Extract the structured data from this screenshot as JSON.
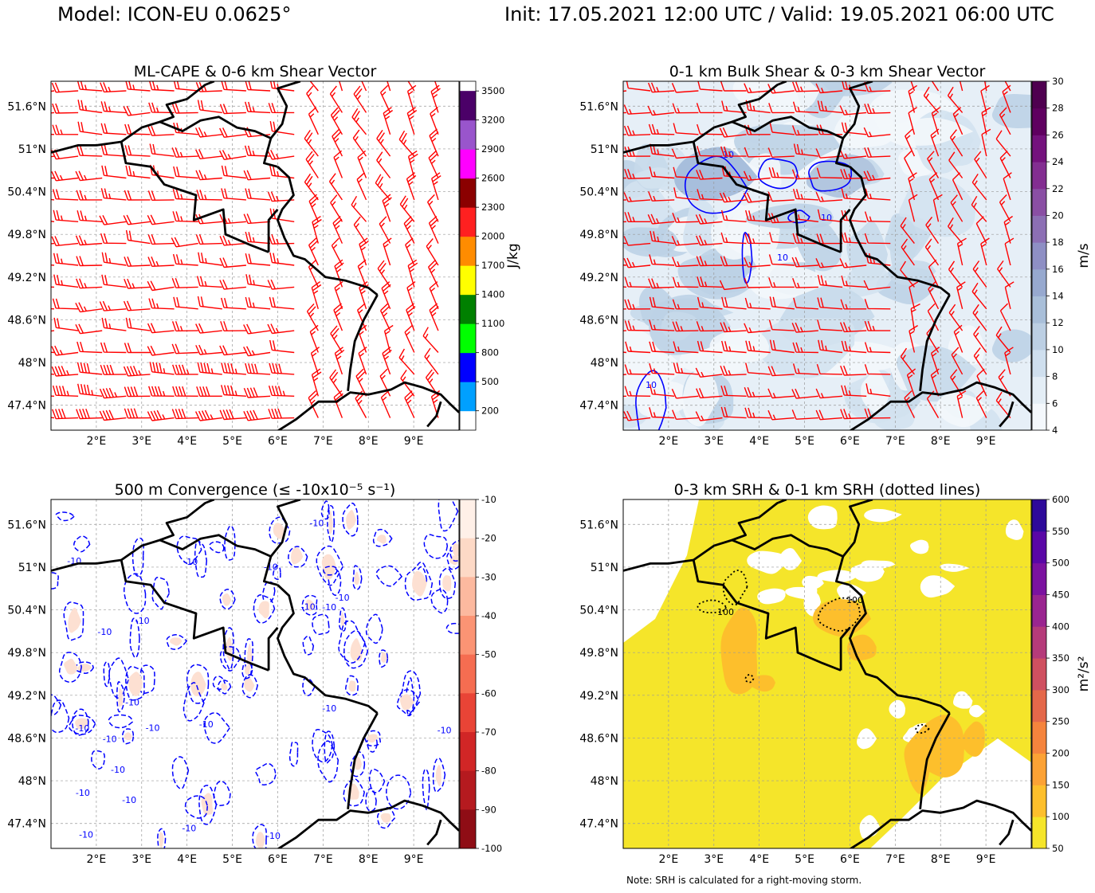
{
  "header": {
    "model": "Model: ICON-EU 0.0625°",
    "times": "Init: 17.05.2021 12:00 UTC / Valid: 19.05.2021 06:00 UTC"
  },
  "note": "Note: SRH is calculated for a right-moving storm.",
  "chart_data": [
    {
      "id": "cape",
      "type": "map",
      "title": "ML-CAPE & 0-6 km Shear Vector",
      "xlabels": [
        "2°E",
        "3°E",
        "4°E",
        "5°E",
        "6°E",
        "7°E",
        "8°E",
        "9°E"
      ],
      "ylabels": [
        "51.6°N",
        "51°N",
        "50.4°N",
        "49.8°N",
        "49.2°N",
        "48.6°N",
        "48°N",
        "47.4°N"
      ],
      "colorbar": {
        "label": "J/kg",
        "ticks": [
          "200",
          "500",
          "800",
          "1100",
          "1400",
          "1700",
          "2000",
          "2300",
          "2600",
          "2900",
          "3200",
          "3500"
        ],
        "colors": [
          "#ffffff",
          "#00a0ff",
          "#0000ff",
          "#00ff00",
          "#008000",
          "#ffff00",
          "#ff8c00",
          "#ff2020",
          "#8b0000",
          "#ff00ff",
          "#9955cc",
          "#4b0068"
        ],
        "values": [
          200,
          500,
          800,
          1100,
          1400,
          1700,
          2000,
          2300,
          2600,
          2900,
          3200,
          3500
        ]
      },
      "overlay": "wind barbs (red)",
      "field": "none"
    },
    {
      "id": "shear",
      "type": "map",
      "title": "0-1 km Bulk Shear & 0-3 km Shear Vector",
      "xlabels": [
        "2°E",
        "3°E",
        "4°E",
        "5°E",
        "6°E",
        "7°E",
        "8°E",
        "9°E"
      ],
      "ylabels": [
        "51.6°N",
        "51°N",
        "50.4°N",
        "49.8°N",
        "49.2°N",
        "48.6°N",
        "48°N",
        "47.4°N"
      ],
      "colorbar": {
        "label": "m/s",
        "ticks": [
          "4",
          "6",
          "8",
          "10",
          "12",
          "14",
          "16",
          "18",
          "20",
          "22",
          "24",
          "26",
          "28",
          "30"
        ],
        "colors": [
          "#f4f8fc",
          "#e4eef6",
          "#cfdfee",
          "#bccfe3",
          "#a9bfd9",
          "#97a9cf",
          "#8e8fc4",
          "#8c6fb4",
          "#8a4fa4",
          "#832e91",
          "#74127d",
          "#5f0060",
          "#4f0050"
        ],
        "values": [
          4,
          6,
          8,
          10,
          12,
          14,
          16,
          18,
          20,
          22,
          24,
          26,
          28,
          30
        ]
      },
      "contour_label": "10",
      "overlay": "wind barbs (red)"
    },
    {
      "id": "conv",
      "type": "map",
      "title": "500 m Convergence (≤ -10x10⁻⁵ s⁻¹)",
      "xlabels": [
        "2°E",
        "3°E",
        "4°E",
        "5°E",
        "6°E",
        "7°E",
        "8°E",
        "9°E"
      ],
      "ylabels": [
        "51.6°N",
        "51°N",
        "50.4°N",
        "49.8°N",
        "49.2°N",
        "48.6°N",
        "48°N",
        "47.4°N"
      ],
      "colorbar": {
        "label": "",
        "ticks": [
          "-10",
          "-20",
          "-30",
          "-40",
          "-50",
          "-60",
          "-70",
          "-80",
          "-90",
          "-100"
        ],
        "colors": [
          "#fff0e8",
          "#fdd9c6",
          "#fcb99f",
          "#fb9474",
          "#f56d51",
          "#e94436",
          "#d12626",
          "#b51a1f",
          "#8f0d15",
          "#6b0010"
        ],
        "values": [
          -10,
          -20,
          -30,
          -40,
          -50,
          -60,
          -70,
          -80,
          -90,
          -100
        ]
      },
      "contour_label": "-10"
    },
    {
      "id": "srh",
      "type": "map",
      "title": "0-3 km SRH & 0-1 km SRH (dotted lines)",
      "xlabels": [
        "2°E",
        "3°E",
        "4°E",
        "5°E",
        "6°E",
        "7°E",
        "8°E",
        "9°E"
      ],
      "ylabels": [
        "51.6°N",
        "51°N",
        "50.4°N",
        "49.8°N",
        "49.2°N",
        "48.6°N",
        "48°N",
        "47.4°N"
      ],
      "colorbar": {
        "label": "m²/s²",
        "ticks": [
          "50",
          "100",
          "150",
          "200",
          "250",
          "300",
          "350",
          "400",
          "450",
          "500",
          "550",
          "600"
        ],
        "colors": [
          "#f5e52a",
          "#fdbf2c",
          "#fca235",
          "#f5843d",
          "#e4684a",
          "#cf5060",
          "#b53b7a",
          "#9a2590",
          "#7b12a0",
          "#5a07a6",
          "#2e0a9a"
        ],
        "values": [
          50,
          100,
          150,
          200,
          250,
          300,
          350,
          400,
          450,
          500,
          550,
          600
        ]
      },
      "contour_label": "100"
    }
  ]
}
